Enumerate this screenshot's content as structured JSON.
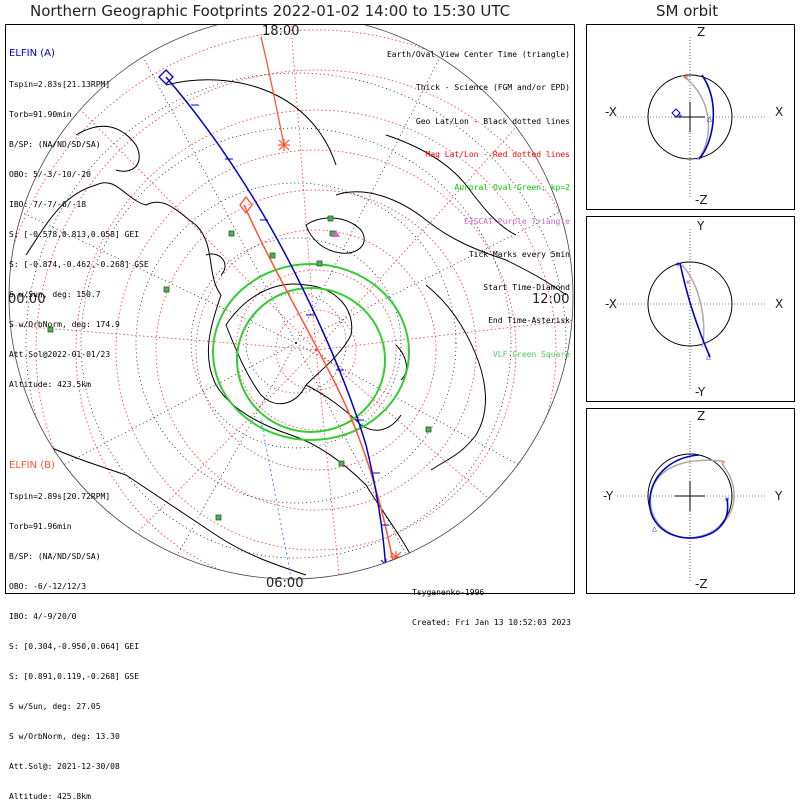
{
  "title": "Northern Geographic Footprints 2022-01-02 14:00 to 15:30 UTC",
  "sm_title": "SM orbit",
  "map": {
    "hour_labels": {
      "top": "18:00",
      "left": "00:00",
      "right": "12:00",
      "bottom": "06:00"
    }
  },
  "elfin_a": {
    "name": "ELFIN (A)",
    "color": "#0000cc",
    "lines": [
      "Tspin=2.83s[21.13RPM]",
      "Torb=91.90min",
      "B/SP: (NA/ND/SD/SA)",
      "OBO: 5/-3/-10/-20",
      "IBO: 7/-7/-6/-18",
      "S: [-0.578,0.813,0.058] GEI",
      "S: [-0.874,-0.462,-0.268] GSE",
      "S w/Sun, deg: 150.7",
      "S w/OrbNorm, deg: 174.9",
      "Att.Sol@2022-01-01/23",
      "Altitude: 423.5km"
    ]
  },
  "elfin_b": {
    "name": "ELFIN (B)",
    "color": "#ff5533",
    "lines": [
      "Tspin=2.89s[20.72RPM]",
      "Torb=91.96min",
      "B/SP: (NA/ND/SD/SA)",
      "OBO: -6/-12/12/3",
      "IBO: 4/-9/20/0",
      "S: [0.304,-0.950,0.064] GEI",
      "S: [0.891,0.119,-0.268] GSE",
      "S w/Sun, deg: 27.05",
      "S w/OrbNorm, deg: 13.30",
      "Att.Sol@: 2021-12-30/08",
      "Altitude: 425.8km"
    ]
  },
  "legend": [
    {
      "text": "Earth/Oval View Center Time (triangle)",
      "color": "#000000"
    },
    {
      "text": "Thick - Science (FGM and/or EPD)",
      "color": "#000000"
    },
    {
      "text": "Geo Lat/Lon - Black dotted lines",
      "color": "#000000"
    },
    {
      "text": "Mag Lat/Lon - Red dotted lines",
      "color": "#ff0000"
    },
    {
      "text": "Auroral Oval-Green, kp=2",
      "color": "#00cc00"
    },
    {
      "text": "EISCAT-Purple Triangle",
      "color": "#cc66cc"
    },
    {
      "text": "Tick Marks every 5min",
      "color": "#000000"
    },
    {
      "text": "Start Time-Diamond",
      "color": "#000000"
    },
    {
      "text": "End Time-Asterisk",
      "color": "#000000"
    },
    {
      "text": "VLF-Green Square",
      "color": "#55cc55"
    }
  ],
  "footer": {
    "model": "Tsyganenko-1996",
    "created": "Created: Fri Jan 13 10:52:03 2023"
  },
  "sm_panels": [
    {
      "top": "Z",
      "bottom": "-Z",
      "left": "-X",
      "right": "X"
    },
    {
      "top": "Y",
      "bottom": "-Y",
      "left": "-X",
      "right": "X"
    },
    {
      "top": "Z",
      "bottom": "-Z",
      "left": "-Y",
      "right": "Y"
    }
  ]
}
